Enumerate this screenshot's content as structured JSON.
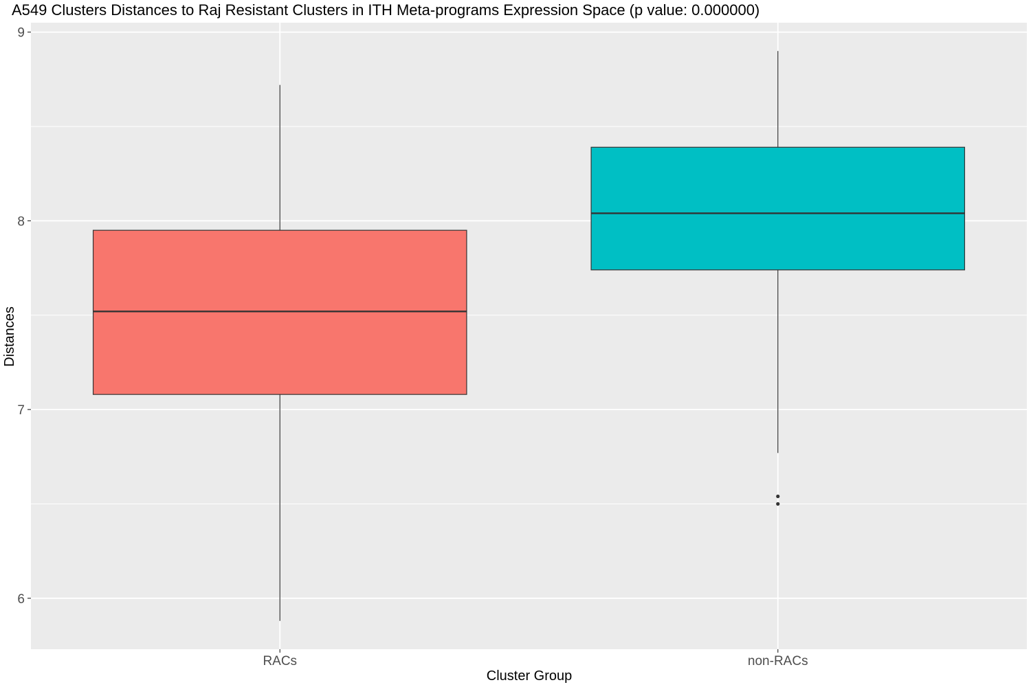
{
  "chart_data": {
    "type": "boxplot",
    "title": "A549 Clusters Distances to Raj Resistant Clusters in ITH Meta-programs Expression Space (p value: 0.000000)",
    "xlabel": "Cluster Group",
    "ylabel": "Distances",
    "ylim": [
      5.73,
      9.05
    ],
    "yticks": [
      6,
      7,
      8,
      9
    ],
    "ytick_labels": [
      "6",
      "7",
      "8",
      "9"
    ],
    "categories": [
      "RACs",
      "non-RACs"
    ],
    "grid": true,
    "legend": "none",
    "background": "#ebebeb",
    "series": [
      {
        "category": "RACs",
        "color": "#f8766d",
        "whisker_low": 5.88,
        "q1": 7.08,
        "median": 7.52,
        "q3": 7.95,
        "whisker_high": 8.72,
        "outliers": []
      },
      {
        "category": "non-RACs",
        "color": "#00bfc4",
        "whisker_low": 6.77,
        "q1": 7.74,
        "median": 8.04,
        "q3": 8.39,
        "whisker_high": 8.9,
        "outliers": [
          6.54,
          6.5
        ]
      }
    ]
  }
}
